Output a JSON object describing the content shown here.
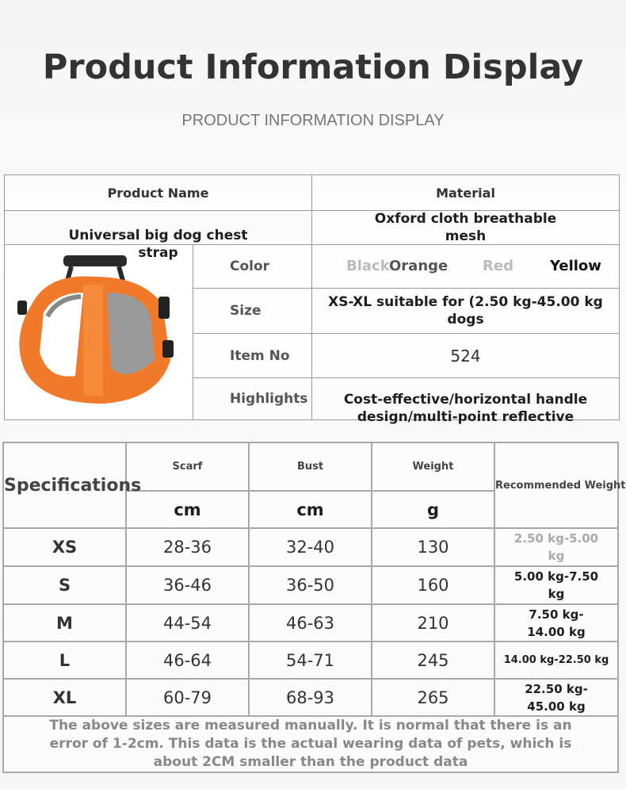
{
  "header": {
    "title": "Product Information Display",
    "subtitle": "PRODUCT INFORMATION DISPLAY"
  },
  "info": {
    "product_name_label": "Product Name",
    "material_label": "Material",
    "product_name": "Universal big dog chest strap",
    "material": "Oxford cloth breathable mesh",
    "color_label": "Color",
    "colors": [
      "Black",
      "Orange",
      "Red",
      "Yellow"
    ],
    "size_label": "Size",
    "size": "XS-XL suitable for (2.50 kg-45.00 kg dogs",
    "item_no_label": "Item No",
    "item_no": "524",
    "highlights_label": "Highlights",
    "highlights": "Cost-effective/horizontal handle design/multi-point reflective",
    "product_color": "#f07a2a"
  },
  "specs": {
    "title": "Specifications",
    "columns": [
      "Scarf",
      "Bust",
      "Weight",
      "Recommended Weight"
    ],
    "units": [
      "cm",
      "cm",
      "g"
    ],
    "rows": [
      {
        "size": "XS",
        "scarf": "28-36",
        "bust": "32-40",
        "weight": "130",
        "recommended": "2.50 kg-5.00 kg"
      },
      {
        "size": "S",
        "scarf": "36-46",
        "bust": "36-50",
        "weight": "160",
        "recommended": "5.00 kg-7.50 kg"
      },
      {
        "size": "M",
        "scarf": "44-54",
        "bust": "46-63",
        "weight": "210",
        "recommended": "7.50 kg-14.00 kg"
      },
      {
        "size": "L",
        "scarf": "46-64",
        "bust": "54-71",
        "weight": "245",
        "recommended": "14.00 kg-22.50 kg"
      },
      {
        "size": "XL",
        "scarf": "60-79",
        "bust": "68-93",
        "weight": "265",
        "recommended": "22.50 kg-45.00 kg"
      }
    ],
    "note": "The above sizes are measured manually. It is normal that there is an error of 1-2cm. This data is the actual wearing data of pets, which is about 2CM smaller than the product data"
  }
}
